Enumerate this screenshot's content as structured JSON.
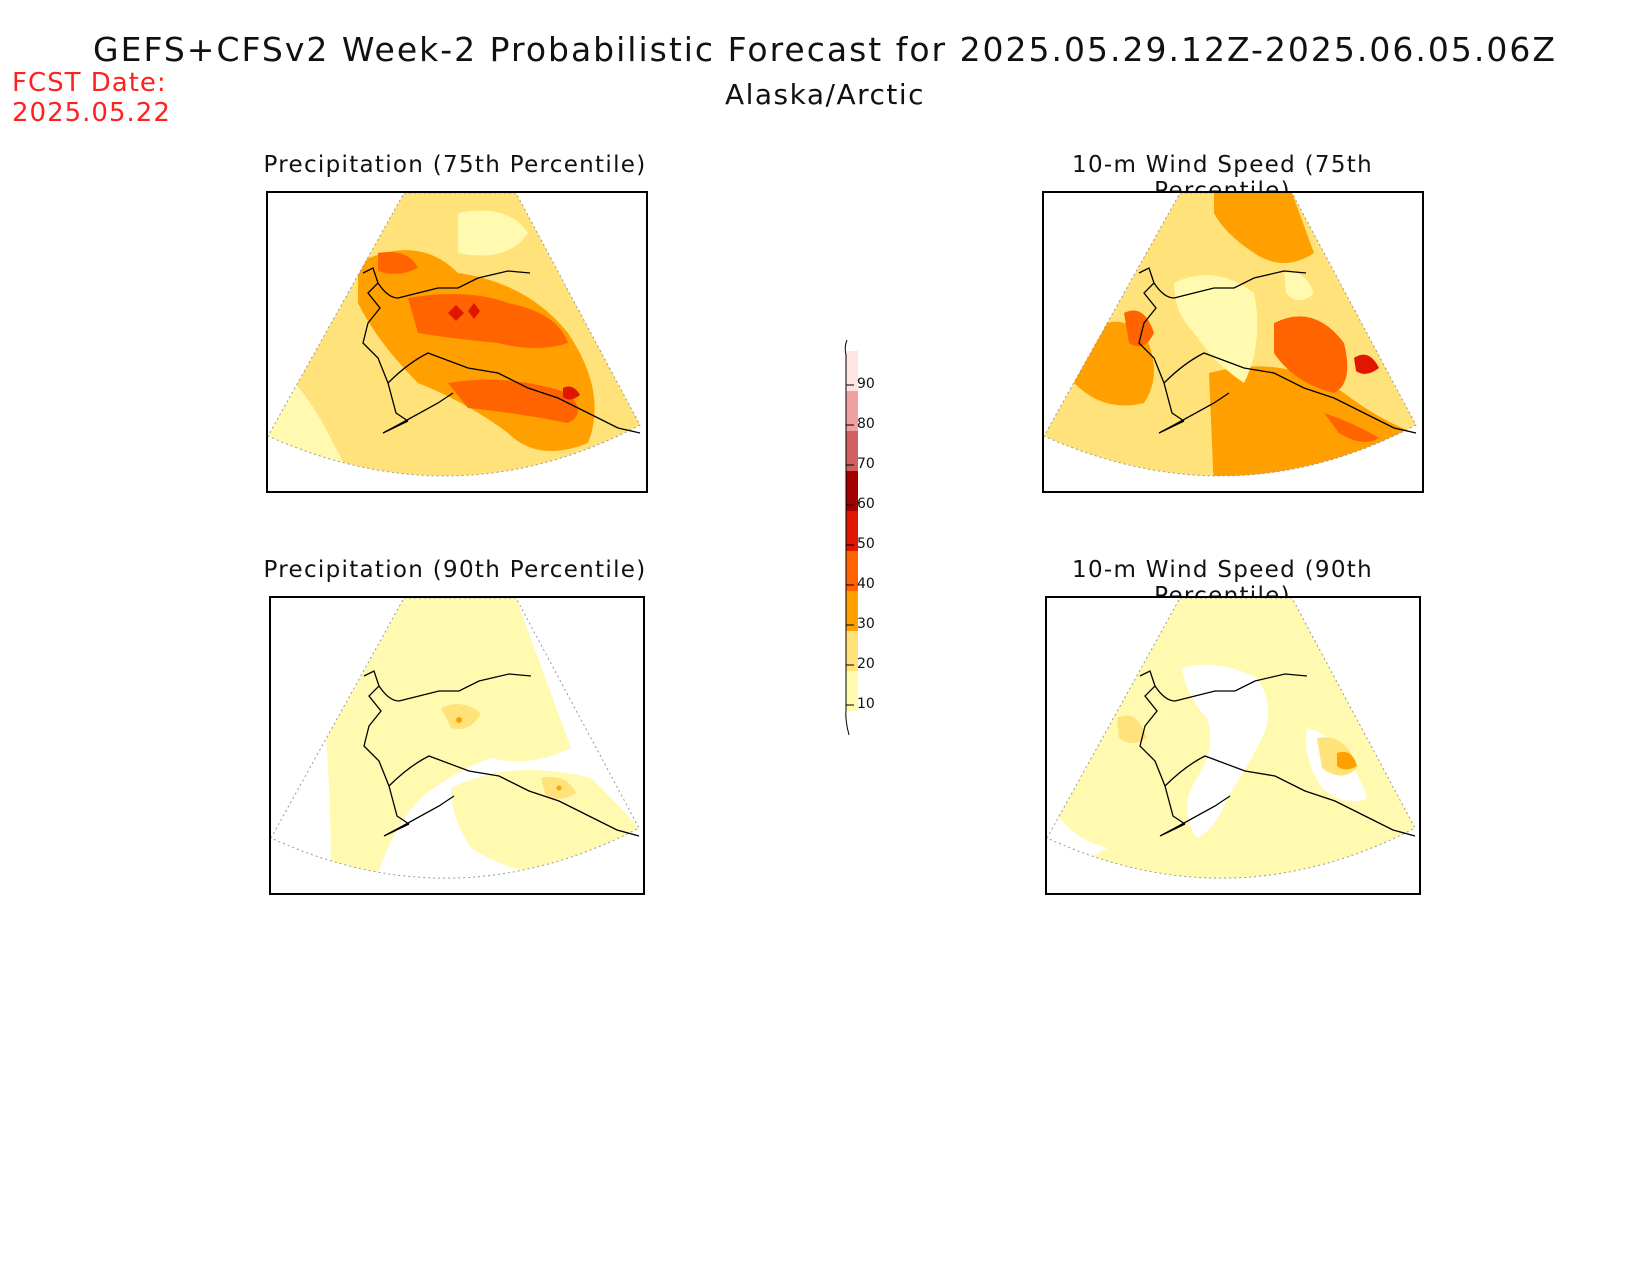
{
  "header": {
    "title": "GEFS+CFSv2 Week-2 Probabilistic Forecast for 2025.05.29.12Z-2025.06.05.06Z",
    "region": "Alaska/Arctic",
    "fcst_label": "FCST Date:",
    "fcst_date": "2025.05.22"
  },
  "panels": [
    {
      "id": "precip-75",
      "title": "Precipitation (75th Percentile)"
    },
    {
      "id": "wind-75",
      "title": "10-m Wind Speed (75th Percentile)"
    },
    {
      "id": "precip-90",
      "title": "Precipitation (90th Percentile)"
    },
    {
      "id": "wind-90",
      "title": "10-m Wind Speed (90th Percentile)"
    }
  ],
  "colorbar": {
    "levels": [
      "10",
      "20",
      "30",
      "40",
      "50",
      "60",
      "70",
      "80",
      "90"
    ],
    "colors": [
      "#fffab0",
      "#ffe27a",
      "#ffa000",
      "#ff6400",
      "#e11600",
      "#a50000",
      "#d06060",
      "#f0a0a0",
      "#ffe4e4"
    ]
  }
}
